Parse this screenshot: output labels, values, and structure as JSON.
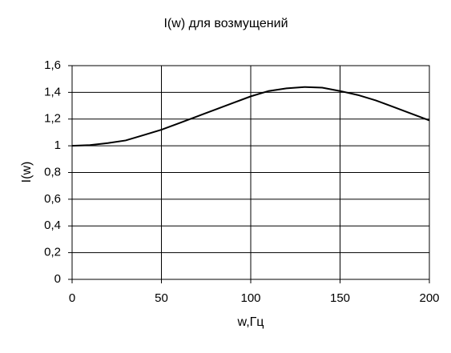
{
  "chart_data": {
    "type": "line",
    "title": "I(w) для возмущений",
    "x_label": "w,Гц",
    "y_label": "I(w)",
    "x": [
      0,
      10,
      20,
      30,
      40,
      50,
      60,
      70,
      80,
      90,
      100,
      110,
      120,
      130,
      140,
      150,
      160,
      170,
      180,
      190,
      200
    ],
    "series": [
      {
        "color": "#000000",
        "values": [
          1.0,
          1.005,
          1.02,
          1.04,
          1.08,
          1.12,
          1.17,
          1.22,
          1.27,
          1.32,
          1.37,
          1.41,
          1.43,
          1.44,
          1.435,
          1.41,
          1.38,
          1.34,
          1.29,
          1.24,
          1.19
        ]
      }
    ],
    "xlim": [
      0,
      200
    ],
    "xticks": [
      0,
      50,
      100,
      150,
      200
    ],
    "ylim": [
      0,
      1.6
    ],
    "yticks": [
      0,
      {
        "value": 0.2,
        "label": "0,2"
      },
      {
        "value": 0.4,
        "label": "0,4"
      },
      {
        "value": 0.6,
        "label": "0,6"
      },
      {
        "value": 0.8,
        "label": "0,8"
      },
      1,
      {
        "value": 1.2,
        "label": "1,2"
      },
      {
        "value": 1.4,
        "label": "1,4"
      },
      {
        "value": 1.6,
        "label": "1,6"
      }
    ],
    "grid": true
  }
}
